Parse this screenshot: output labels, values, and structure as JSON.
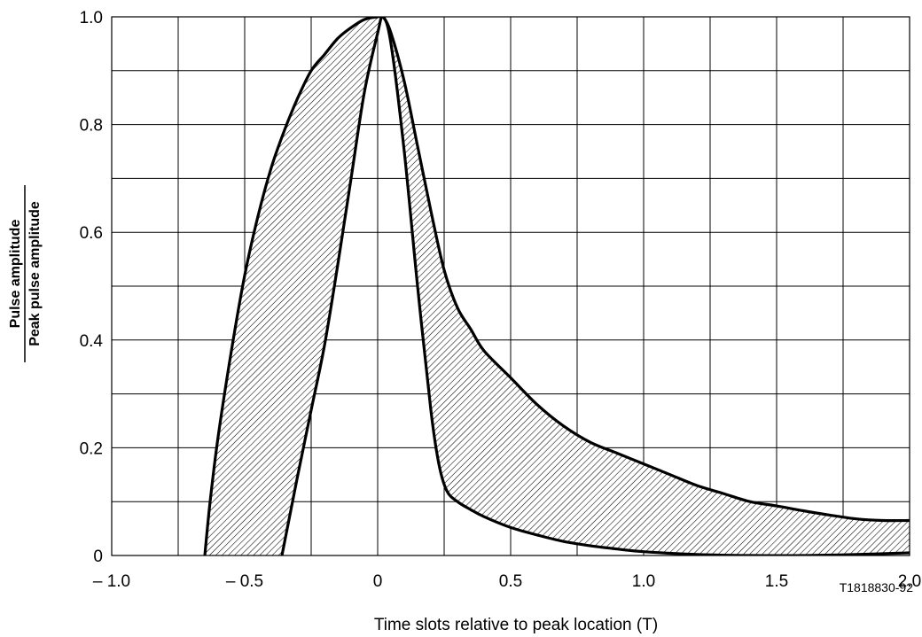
{
  "chart_data": {
    "type": "area",
    "xlabel": "Time slots relative to peak location (T)",
    "ylabel_numerator": "Pulse amplitude",
    "ylabel_denominator": "Peak pulse amplitude",
    "reference": "T1818830-92",
    "xlim": [
      -1.0,
      2.0
    ],
    "ylim": [
      0,
      1.0
    ],
    "x_tick_labels": [
      "– 1.0",
      "– 0.5",
      "0",
      "0.5",
      "1.0",
      "1.5",
      "2.0"
    ],
    "x_tick_values": [
      -1.0,
      -0.5,
      0,
      0.5,
      1.0,
      1.5,
      2.0
    ],
    "y_tick_labels": [
      "0",
      "0.2",
      "0.4",
      "0.6",
      "0.8",
      "1.0"
    ],
    "y_tick_values": [
      0,
      0.2,
      0.4,
      0.6,
      0.8,
      1.0
    ],
    "grid": true,
    "grid_x_step": 0.25,
    "grid_y_step": 0.1,
    "fill_pattern": "diagonal-hatch",
    "series": [
      {
        "role": "upper",
        "x": [
          -0.65,
          -0.63,
          -0.6,
          -0.55,
          -0.5,
          -0.45,
          -0.4,
          -0.35,
          -0.3,
          -0.25,
          -0.2,
          -0.15,
          -0.1,
          -0.05,
          0.0,
          0.02,
          0.05,
          0.1,
          0.15,
          0.2,
          0.25,
          0.3,
          0.35,
          0.4,
          0.5,
          0.6,
          0.7,
          0.8,
          0.9,
          1.0,
          1.1,
          1.2,
          1.3,
          1.4,
          1.5,
          1.6,
          1.7,
          1.8,
          1.9,
          2.0
        ],
        "y": [
          0.0,
          0.1,
          0.22,
          0.38,
          0.52,
          0.63,
          0.72,
          0.79,
          0.85,
          0.9,
          0.93,
          0.96,
          0.98,
          0.995,
          1.0,
          1.0,
          0.97,
          0.88,
          0.76,
          0.64,
          0.53,
          0.46,
          0.42,
          0.38,
          0.33,
          0.28,
          0.24,
          0.21,
          0.19,
          0.17,
          0.15,
          0.13,
          0.115,
          0.1,
          0.092,
          0.083,
          0.075,
          0.068,
          0.065,
          0.065
        ]
      },
      {
        "role": "lower",
        "x": [
          -0.36,
          -0.34,
          -0.3,
          -0.25,
          -0.2,
          -0.15,
          -0.1,
          -0.05,
          0.0,
          0.02,
          0.05,
          0.1,
          0.15,
          0.2,
          0.23,
          0.26,
          0.3,
          0.35,
          0.4,
          0.5,
          0.6,
          0.7,
          0.8,
          0.9,
          1.0,
          1.2,
          1.4,
          1.6,
          1.8,
          2.0
        ],
        "y": [
          0.0,
          0.05,
          0.15,
          0.27,
          0.39,
          0.54,
          0.7,
          0.86,
          0.97,
          1.0,
          0.95,
          0.75,
          0.5,
          0.27,
          0.17,
          0.12,
          0.1,
          0.085,
          0.072,
          0.052,
          0.038,
          0.026,
          0.018,
          0.012,
          0.007,
          0.002,
          0.0,
          0.0,
          0.002,
          0.005
        ]
      }
    ]
  }
}
